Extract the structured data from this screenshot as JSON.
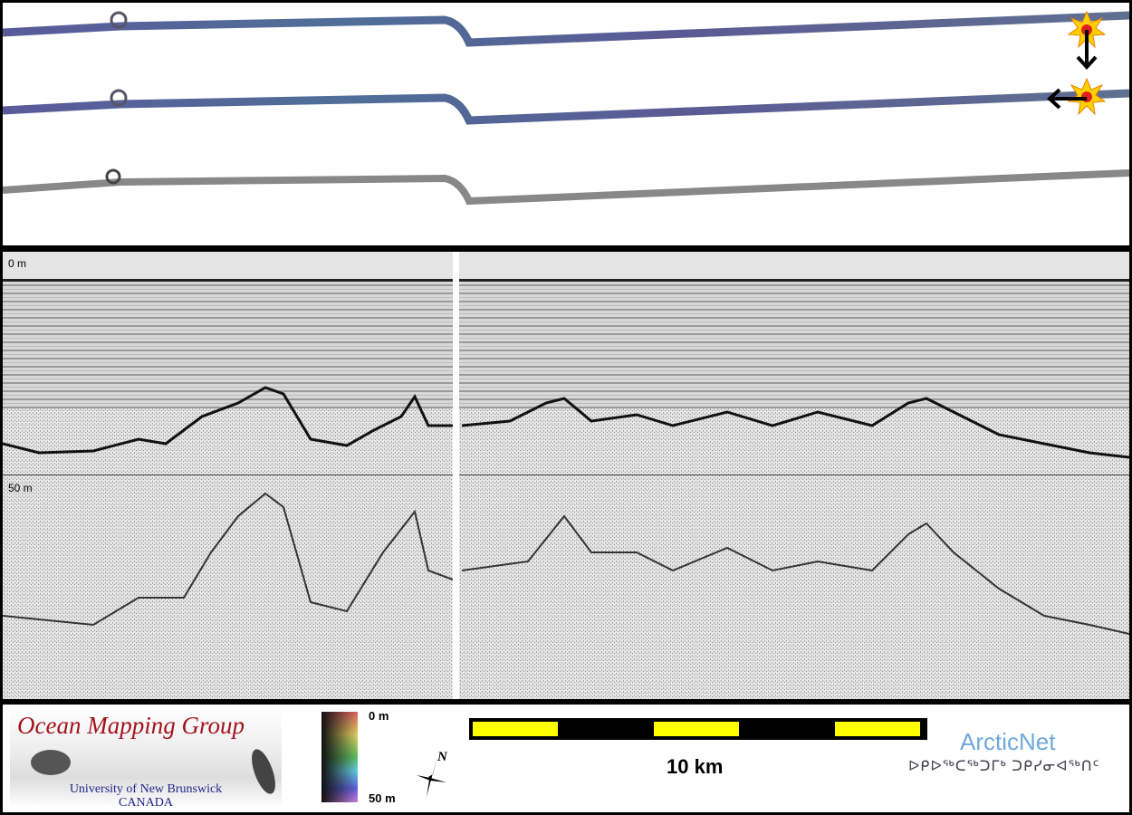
{
  "profile": {
    "depth_top_label": "0 m",
    "depth_mid_label": "50 m"
  },
  "legend": {
    "logo_title": "Ocean Mapping Group",
    "logo_university": "University of New Brunswick",
    "logo_country": "CANADA",
    "colorbar_top": "0 m",
    "colorbar_bottom": "50 m",
    "north_label": "N",
    "scale_label": "10 km",
    "partner_name": "ArcticNet",
    "partner_inuktitut": "ᐅᑭᐅᖅᑕᖅᑐᒥᒃ ᑐᑭᓯᓂᐊᖅᑎᑦ"
  },
  "colors": {
    "scale_bar_fill": "#ffff00",
    "logo_title": "#a3141c",
    "logo_subtitle": "#22238a",
    "partner": "#6fa8dc"
  },
  "icons": [
    "explosion-icon",
    "arrow-down-icon",
    "arrow-left-icon",
    "north-arrow-icon"
  ]
}
